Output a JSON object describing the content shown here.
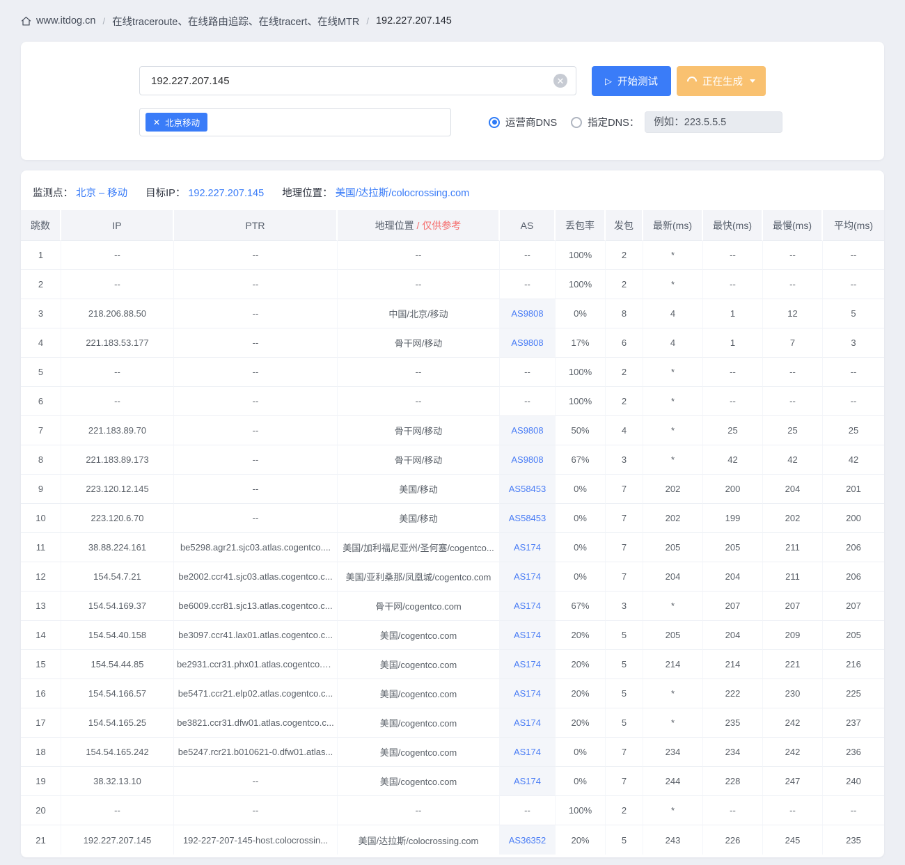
{
  "colors": {
    "accent_blue": "#3a7cf8",
    "warning_orange": "#f9c170",
    "link_blue": "#4a7df5",
    "danger_red": "#f56c6c",
    "page_background": "#edeff4",
    "header_cell_background": "#f3f4f8"
  },
  "breadcrumb": {
    "site": "www.itdog.cn",
    "page": "在线traceroute、在线路由追踪、在线tracert、在线MTR",
    "current": "192.227.207.145",
    "separator": "/"
  },
  "search": {
    "input_value": "192.227.207.145",
    "clear_glyph": "✕",
    "start_button": "开始测试",
    "generating_button": "正在生成",
    "node_tag": "北京移动",
    "tag_close_glyph": "✕",
    "radio_isp": "运营商DNS",
    "radio_custom": "指定DNS：",
    "dns_placeholder": "例如：223.5.5.5"
  },
  "result": {
    "monitor_label": "监测点：",
    "monitor_value": "北京 – 移动",
    "target_label": "目标IP：",
    "target_value": "192.227.207.145",
    "geo_label": "地理位置：",
    "geo_value": "美国/达拉斯/colocrossing.com"
  },
  "table": {
    "headers": {
      "hop": "跳数",
      "ip": "IP",
      "ptr": "PTR",
      "geo": "地理位置",
      "geo_note": "/ 仅供参考",
      "as": "AS",
      "loss": "丢包率",
      "sent": "发包",
      "latest": "最新(ms)",
      "fastest": "最快(ms)",
      "slowest": "最慢(ms)",
      "avg": "平均(ms)"
    },
    "rows": [
      {
        "hop": "1",
        "ip": "--",
        "ptr": "--",
        "location": "--",
        "as": "--",
        "loss": "100%",
        "sent": "2",
        "latest": "*",
        "fastest": "--",
        "slowest": "--",
        "avg": "--"
      },
      {
        "hop": "2",
        "ip": "--",
        "ptr": "--",
        "location": "--",
        "as": "--",
        "loss": "100%",
        "sent": "2",
        "latest": "*",
        "fastest": "--",
        "slowest": "--",
        "avg": "--"
      },
      {
        "hop": "3",
        "ip": "218.206.88.50",
        "ptr": "--",
        "location": "中国/北京/移动",
        "as": "AS9808",
        "loss": "0%",
        "sent": "8",
        "latest": "4",
        "fastest": "1",
        "slowest": "12",
        "avg": "5"
      },
      {
        "hop": "4",
        "ip": "221.183.53.177",
        "ptr": "--",
        "location": "骨干网/移动",
        "as": "AS9808",
        "loss": "17%",
        "sent": "6",
        "latest": "4",
        "fastest": "1",
        "slowest": "7",
        "avg": "3"
      },
      {
        "hop": "5",
        "ip": "--",
        "ptr": "--",
        "location": "--",
        "as": "--",
        "loss": "100%",
        "sent": "2",
        "latest": "*",
        "fastest": "--",
        "slowest": "--",
        "avg": "--"
      },
      {
        "hop": "6",
        "ip": "--",
        "ptr": "--",
        "location": "--",
        "as": "--",
        "loss": "100%",
        "sent": "2",
        "latest": "*",
        "fastest": "--",
        "slowest": "--",
        "avg": "--"
      },
      {
        "hop": "7",
        "ip": "221.183.89.70",
        "ptr": "--",
        "location": "骨干网/移动",
        "as": "AS9808",
        "loss": "50%",
        "sent": "4",
        "latest": "*",
        "fastest": "25",
        "slowest": "25",
        "avg": "25"
      },
      {
        "hop": "8",
        "ip": "221.183.89.173",
        "ptr": "--",
        "location": "骨干网/移动",
        "as": "AS9808",
        "loss": "67%",
        "sent": "3",
        "latest": "*",
        "fastest": "42",
        "slowest": "42",
        "avg": "42"
      },
      {
        "hop": "9",
        "ip": "223.120.12.145",
        "ptr": "--",
        "location": "美国/移动",
        "as": "AS58453",
        "loss": "0%",
        "sent": "7",
        "latest": "202",
        "fastest": "200",
        "slowest": "204",
        "avg": "201"
      },
      {
        "hop": "10",
        "ip": "223.120.6.70",
        "ptr": "--",
        "location": "美国/移动",
        "as": "AS58453",
        "loss": "0%",
        "sent": "7",
        "latest": "202",
        "fastest": "199",
        "slowest": "202",
        "avg": "200"
      },
      {
        "hop": "11",
        "ip": "38.88.224.161",
        "ptr": "be5298.agr21.sjc03.atlas.cogentco....",
        "location": "美国/加利福尼亚州/圣何塞/cogentco...",
        "as": "AS174",
        "loss": "0%",
        "sent": "7",
        "latest": "205",
        "fastest": "205",
        "slowest": "211",
        "avg": "206"
      },
      {
        "hop": "12",
        "ip": "154.54.7.21",
        "ptr": "be2002.ccr41.sjc03.atlas.cogentco.c...",
        "location": "美国/亚利桑那/凤凰城/cogentco.com",
        "as": "AS174",
        "loss": "0%",
        "sent": "7",
        "latest": "204",
        "fastest": "204",
        "slowest": "211",
        "avg": "206"
      },
      {
        "hop": "13",
        "ip": "154.54.169.37",
        "ptr": "be6009.ccr81.sjc13.atlas.cogentco.c...",
        "location": "骨干网/cogentco.com",
        "as": "AS174",
        "loss": "67%",
        "sent": "3",
        "latest": "*",
        "fastest": "207",
        "slowest": "207",
        "avg": "207"
      },
      {
        "hop": "14",
        "ip": "154.54.40.158",
        "ptr": "be3097.ccr41.lax01.atlas.cogentco.c...",
        "location": "美国/cogentco.com",
        "as": "AS174",
        "loss": "20%",
        "sent": "5",
        "latest": "205",
        "fastest": "204",
        "slowest": "209",
        "avg": "205"
      },
      {
        "hop": "15",
        "ip": "154.54.44.85",
        "ptr": "be2931.ccr31.phx01.atlas.cogentco.c...",
        "location": "美国/cogentco.com",
        "as": "AS174",
        "loss": "20%",
        "sent": "5",
        "latest": "214",
        "fastest": "214",
        "slowest": "221",
        "avg": "216"
      },
      {
        "hop": "16",
        "ip": "154.54.166.57",
        "ptr": "be5471.ccr21.elp02.atlas.cogentco.c...",
        "location": "美国/cogentco.com",
        "as": "AS174",
        "loss": "20%",
        "sent": "5",
        "latest": "*",
        "fastest": "222",
        "slowest": "230",
        "avg": "225"
      },
      {
        "hop": "17",
        "ip": "154.54.165.25",
        "ptr": "be3821.ccr31.dfw01.atlas.cogentco.c...",
        "location": "美国/cogentco.com",
        "as": "AS174",
        "loss": "20%",
        "sent": "5",
        "latest": "*",
        "fastest": "235",
        "slowest": "242",
        "avg": "237"
      },
      {
        "hop": "18",
        "ip": "154.54.165.242",
        "ptr": "be5247.rcr21.b010621-0.dfw01.atlas...",
        "location": "美国/cogentco.com",
        "as": "AS174",
        "loss": "0%",
        "sent": "7",
        "latest": "234",
        "fastest": "234",
        "slowest": "242",
        "avg": "236"
      },
      {
        "hop": "19",
        "ip": "38.32.13.10",
        "ptr": "--",
        "location": "美国/cogentco.com",
        "as": "AS174",
        "loss": "0%",
        "sent": "7",
        "latest": "244",
        "fastest": "228",
        "slowest": "247",
        "avg": "240"
      },
      {
        "hop": "20",
        "ip": "--",
        "ptr": "--",
        "location": "--",
        "as": "--",
        "loss": "100%",
        "sent": "2",
        "latest": "*",
        "fastest": "--",
        "slowest": "--",
        "avg": "--"
      },
      {
        "hop": "21",
        "ip": "192.227.207.145",
        "ptr": "192-227-207-145-host.colocrossin...",
        "location": "美国/达拉斯/colocrossing.com",
        "as": "AS36352",
        "loss": "20%",
        "sent": "5",
        "latest": "243",
        "fastest": "226",
        "slowest": "245",
        "avg": "235"
      }
    ]
  }
}
